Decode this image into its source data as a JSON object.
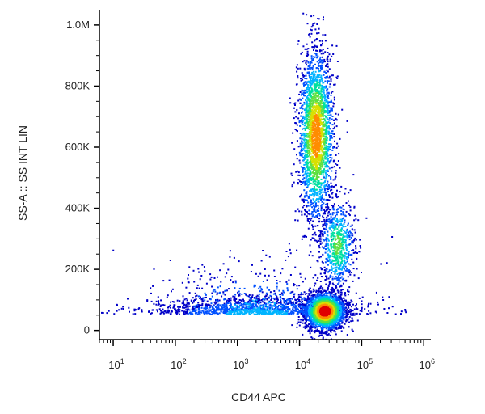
{
  "chart_data": {
    "type": "scatter",
    "title": "",
    "xlabel": "CD44 APC",
    "ylabel": "SS-A :: SS INT LIN",
    "x_scale": "log",
    "xlim": [
      6,
      1300000
    ],
    "ylim": [
      -30000,
      1050000
    ],
    "y_scale": "linear",
    "grid": false,
    "legend": "none",
    "x_ticks": [
      {
        "value": 10,
        "base": "10",
        "exp": "1"
      },
      {
        "value": 100,
        "base": "10",
        "exp": "2"
      },
      {
        "value": 1000,
        "base": "10",
        "exp": "3"
      },
      {
        "value": 10000,
        "base": "10",
        "exp": "4"
      },
      {
        "value": 100000,
        "base": "10",
        "exp": "5"
      },
      {
        "value": 1000000,
        "base": "10",
        "exp": "6"
      }
    ],
    "y_ticks": [
      {
        "value": 0,
        "label": "0"
      },
      {
        "value": 200000,
        "label": "200K"
      },
      {
        "value": 400000,
        "label": "400K"
      },
      {
        "value": 600000,
        "label": "600K"
      },
      {
        "value": 800000,
        "label": "800K"
      },
      {
        "value": 1000000,
        "label": "1.0M"
      }
    ],
    "populations": [
      {
        "center_x": 25000,
        "center_y": 65000,
        "spread_log_x": 0.16,
        "spread_y": 30000,
        "count": 2600
      },
      {
        "center_x": 18000,
        "center_y": 640000,
        "spread_log_x": 0.14,
        "spread_y": 140000,
        "count": 2400
      },
      {
        "center_x": 40000,
        "center_y": 280000,
        "spread_log_x": 0.14,
        "spread_y": 75000,
        "count": 700
      },
      {
        "center_x": 2000,
        "center_y": 55000,
        "spread_log_x": 0.85,
        "spread_y": 28000,
        "count": 1600
      }
    ],
    "colormap": [
      "#0000c8",
      "#0050ff",
      "#00b4ff",
      "#00e0a0",
      "#60e040",
      "#d8e000",
      "#ff8c00",
      "#e00000"
    ]
  }
}
